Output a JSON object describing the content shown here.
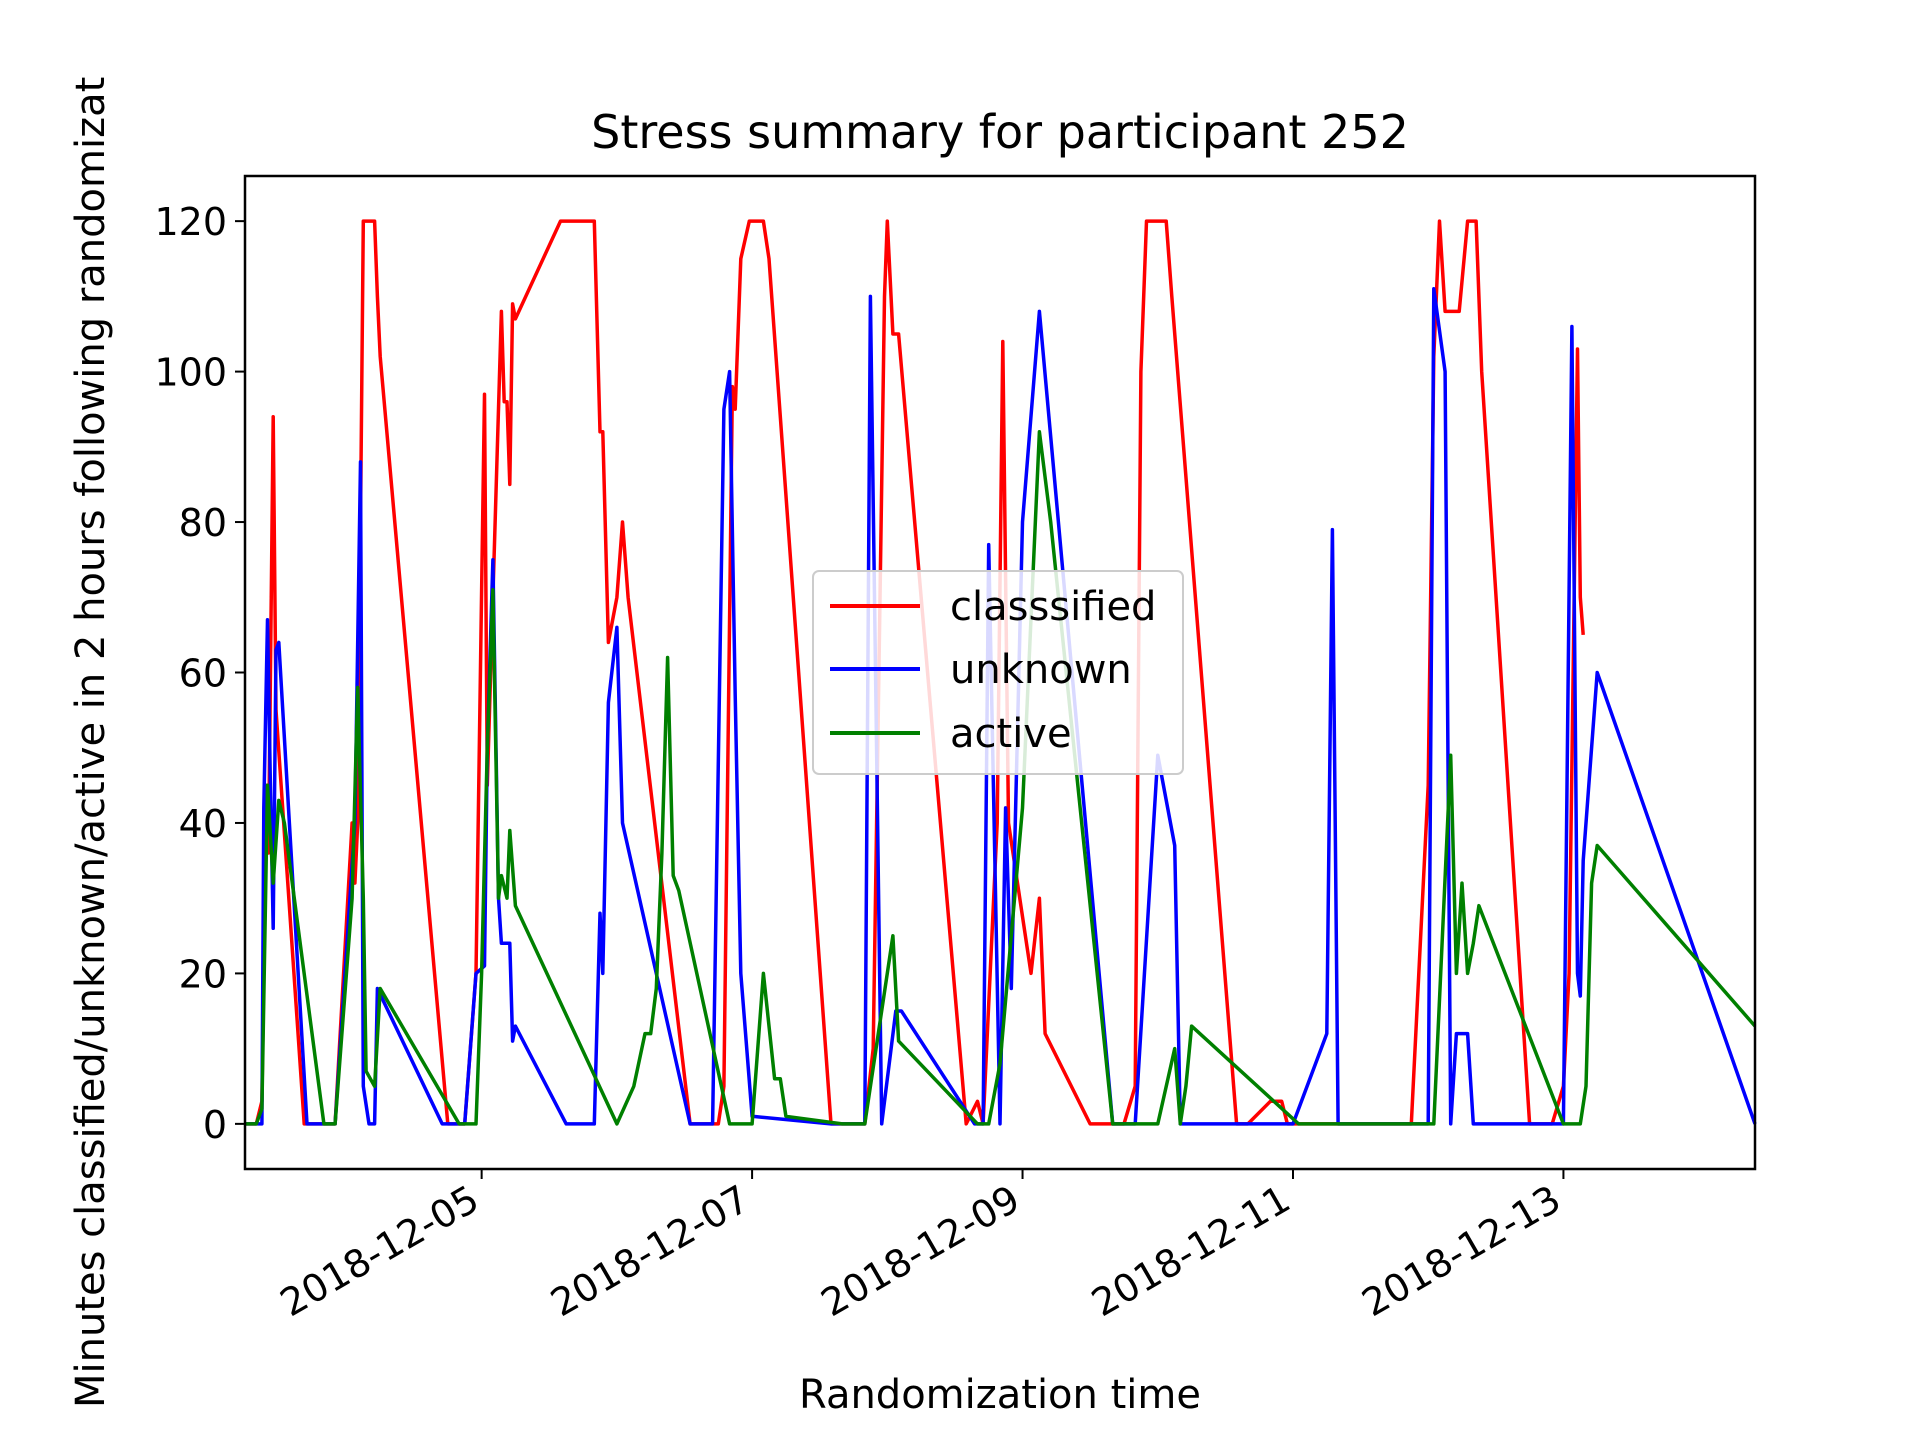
{
  "chart_data": {
    "type": "line",
    "title": "Stress summary for participant 252",
    "xlabel": "Randomization time",
    "ylabel": "Minutes classified/unknown/active in 2 hours following randomizat",
    "xlim": [
      "2018-12-03 06:00",
      "2018-12-14 10:00"
    ],
    "ylim": [
      -6,
      126
    ],
    "xticks": [
      "2018-12-05",
      "2018-12-07",
      "2018-12-09",
      "2018-12-11",
      "2018-12-13"
    ],
    "yticks": [
      0,
      20,
      40,
      60,
      80,
      100,
      120
    ],
    "grid": false,
    "legend_position": "center-right",
    "series": [
      {
        "name": "classsified",
        "color": "#ff0000",
        "points": [
          [
            "2018-12-03 06:00",
            0
          ],
          [
            "2018-12-03 08:00",
            0
          ],
          [
            "2018-12-03 09:00",
            3
          ],
          [
            "2018-12-03 09:50",
            45
          ],
          [
            "2018-12-03 10:10",
            36
          ],
          [
            "2018-12-03 11:00",
            94
          ],
          [
            "2018-12-03 11:30",
            55
          ],
          [
            "2018-12-03 16:30",
            0
          ],
          [
            "2018-12-03 20:00",
            0
          ],
          [
            "2018-12-03 22:00",
            0
          ],
          [
            "2018-12-04 01:00",
            40
          ],
          [
            "2018-12-04 01:30",
            32
          ],
          [
            "2018-12-04 02:00",
            40
          ],
          [
            "2018-12-04 03:00",
            120
          ],
          [
            "2018-12-04 05:00",
            120
          ],
          [
            "2018-12-04 05:30",
            110
          ],
          [
            "2018-12-04 06:00",
            102
          ],
          [
            "2018-12-04 18:00",
            0
          ],
          [
            "2018-12-04 21:00",
            0
          ],
          [
            "2018-12-04 23:00",
            20
          ],
          [
            "2018-12-05 00:30",
            97
          ],
          [
            "2018-12-05 01:00",
            45
          ],
          [
            "2018-12-05 03:30",
            108
          ],
          [
            "2018-12-05 04:00",
            96
          ],
          [
            "2018-12-05 04:30",
            96
          ],
          [
            "2018-12-05 05:00",
            85
          ],
          [
            "2018-12-05 05:30",
            109
          ],
          [
            "2018-12-05 06:00",
            107
          ],
          [
            "2018-12-05 14:00",
            120
          ],
          [
            "2018-12-05 20:00",
            120
          ],
          [
            "2018-12-05 21:00",
            92
          ],
          [
            "2018-12-05 21:30",
            92
          ],
          [
            "2018-12-05 22:30",
            64
          ],
          [
            "2018-12-06 00:00",
            70
          ],
          [
            "2018-12-06 01:00",
            80
          ],
          [
            "2018-12-06 02:00",
            70
          ],
          [
            "2018-12-06 13:00",
            0
          ],
          [
            "2018-12-06 16:00",
            0
          ],
          [
            "2018-12-06 18:00",
            0
          ],
          [
            "2018-12-06 19:00",
            5
          ],
          [
            "2018-12-06 20:30",
            98
          ],
          [
            "2018-12-06 21:00",
            95
          ],
          [
            "2018-12-06 22:00",
            115
          ],
          [
            "2018-12-06 23:30",
            120
          ],
          [
            "2018-12-07 02:00",
            120
          ],
          [
            "2018-12-07 03:00",
            115
          ],
          [
            "2018-12-07 14:00",
            0
          ],
          [
            "2018-12-07 20:00",
            0
          ],
          [
            "2018-12-07 21:30",
            10
          ],
          [
            "2018-12-07 22:30",
            60
          ],
          [
            "2018-12-07 23:30",
            110
          ],
          [
            "2018-12-08 00:00",
            120
          ],
          [
            "2018-12-08 01:00",
            105
          ],
          [
            "2018-12-08 02:00",
            105
          ],
          [
            "2018-12-08 14:00",
            0
          ],
          [
            "2018-12-08 16:00",
            3
          ],
          [
            "2018-12-08 17:00",
            0
          ],
          [
            "2018-12-08 19:30",
            40
          ],
          [
            "2018-12-08 20:30",
            104
          ],
          [
            "2018-12-08 21:30",
            40
          ],
          [
            "2018-12-09 01:30",
            20
          ],
          [
            "2018-12-09 03:00",
            30
          ],
          [
            "2018-12-09 04:00",
            12
          ],
          [
            "2018-12-09 12:00",
            0
          ],
          [
            "2018-12-09 16:00",
            0
          ],
          [
            "2018-12-09 18:00",
            0
          ],
          [
            "2018-12-09 20:00",
            5
          ],
          [
            "2018-12-09 21:00",
            100
          ],
          [
            "2018-12-09 22:00",
            120
          ],
          [
            "2018-12-10 01:30",
            120
          ],
          [
            "2018-12-10 02:30",
            110
          ],
          [
            "2018-12-10 14:00",
            0
          ],
          [
            "2018-12-10 16:00",
            0
          ],
          [
            "2018-12-10 20:00",
            3
          ],
          [
            "2018-12-10 22:00",
            3
          ],
          [
            "2018-12-10 23:00",
            0
          ],
          [
            "2018-12-11 21:00",
            0
          ],
          [
            "2018-12-12 00:00",
            45
          ],
          [
            "2018-12-12 01:00",
            102
          ],
          [
            "2018-12-12 02:00",
            120
          ],
          [
            "2018-12-12 03:00",
            108
          ],
          [
            "2018-12-12 05:30",
            108
          ],
          [
            "2018-12-12 07:00",
            120
          ],
          [
            "2018-12-12 08:30",
            120
          ],
          [
            "2018-12-12 09:30",
            100
          ],
          [
            "2018-12-12 18:00",
            0
          ],
          [
            "2018-12-12 20:00",
            0
          ],
          [
            "2018-12-12 22:00",
            0
          ],
          [
            "2018-12-13 00:00",
            5
          ],
          [
            "2018-12-13 01:00",
            20
          ],
          [
            "2018-12-13 02:30",
            103
          ],
          [
            "2018-12-13 03:00",
            70
          ],
          [
            "2018-12-13 03:30",
            65
          ]
        ]
      },
      {
        "name": "unknown",
        "color": "#0000ff",
        "points": [
          [
            "2018-12-03 06:00",
            0
          ],
          [
            "2018-12-03 09:00",
            0
          ],
          [
            "2018-12-03 09:20",
            42
          ],
          [
            "2018-12-03 10:00",
            67
          ],
          [
            "2018-12-03 10:30",
            45
          ],
          [
            "2018-12-03 11:00",
            26
          ],
          [
            "2018-12-03 11:30",
            63
          ],
          [
            "2018-12-03 12:00",
            64
          ],
          [
            "2018-12-03 17:00",
            0
          ],
          [
            "2018-12-03 20:00",
            0
          ],
          [
            "2018-12-03 22:00",
            0
          ],
          [
            "2018-12-04 01:30",
            40
          ],
          [
            "2018-12-04 02:30",
            88
          ],
          [
            "2018-12-04 03:00",
            5
          ],
          [
            "2018-12-04 04:00",
            0
          ],
          [
            "2018-12-04 05:00",
            0
          ],
          [
            "2018-12-04 05:30",
            18
          ],
          [
            "2018-12-04 17:00",
            0
          ],
          [
            "2018-12-04 21:00",
            0
          ],
          [
            "2018-12-04 23:00",
            20
          ],
          [
            "2018-12-05 00:30",
            21
          ],
          [
            "2018-12-05 01:00",
            50
          ],
          [
            "2018-12-05 02:00",
            75
          ],
          [
            "2018-12-05 03:00",
            30
          ],
          [
            "2018-12-05 03:30",
            24
          ],
          [
            "2018-12-05 05:00",
            24
          ],
          [
            "2018-12-05 05:30",
            11
          ],
          [
            "2018-12-05 06:00",
            13
          ],
          [
            "2018-12-05 15:00",
            0
          ],
          [
            "2018-12-05 20:00",
            0
          ],
          [
            "2018-12-05 21:00",
            28
          ],
          [
            "2018-12-05 21:30",
            20
          ],
          [
            "2018-12-05 22:30",
            56
          ],
          [
            "2018-12-06 00:00",
            66
          ],
          [
            "2018-12-06 01:00",
            40
          ],
          [
            "2018-12-06 13:00",
            0
          ],
          [
            "2018-12-06 15:00",
            0
          ],
          [
            "2018-12-06 17:00",
            0
          ],
          [
            "2018-12-06 19:00",
            95
          ],
          [
            "2018-12-06 20:00",
            100
          ],
          [
            "2018-12-06 21:00",
            57
          ],
          [
            "2018-12-06 22:00",
            20
          ],
          [
            "2018-12-07 00:00",
            1
          ],
          [
            "2018-12-07 14:00",
            0
          ],
          [
            "2018-12-07 20:00",
            0
          ],
          [
            "2018-12-07 21:00",
            110
          ],
          [
            "2018-12-07 23:00",
            0
          ],
          [
            "2018-12-08 01:30",
            15
          ],
          [
            "2018-12-08 02:30",
            15
          ],
          [
            "2018-12-08 15:30",
            0
          ],
          [
            "2018-12-08 17:00",
            0
          ],
          [
            "2018-12-08 18:00",
            77
          ],
          [
            "2018-12-08 20:00",
            0
          ],
          [
            "2018-12-08 21:00",
            42
          ],
          [
            "2018-12-08 22:00",
            18
          ],
          [
            "2018-12-09 00:00",
            80
          ],
          [
            "2018-12-09 03:00",
            108
          ],
          [
            "2018-12-09 16:00",
            0
          ],
          [
            "2018-12-09 20:00",
            0
          ],
          [
            "2018-12-10 00:00",
            49
          ],
          [
            "2018-12-10 03:00",
            37
          ],
          [
            "2018-12-10 04:00",
            0
          ],
          [
            "2018-12-11 00:00",
            0
          ],
          [
            "2018-12-11 06:00",
            12
          ],
          [
            "2018-12-11 07:00",
            79
          ],
          [
            "2018-12-11 08:00",
            0
          ],
          [
            "2018-12-12 00:00",
            0
          ],
          [
            "2018-12-12 01:00",
            111
          ],
          [
            "2018-12-12 03:00",
            100
          ],
          [
            "2018-12-12 04:00",
            0
          ],
          [
            "2018-12-12 05:00",
            12
          ],
          [
            "2018-12-12 07:00",
            12
          ],
          [
            "2018-12-12 08:00",
            0
          ],
          [
            "2018-12-12 19:00",
            0
          ],
          [
            "2018-12-12 20:00",
            0
          ],
          [
            "2018-12-13 00:00",
            0
          ],
          [
            "2018-12-13 01:30",
            106
          ],
          [
            "2018-12-13 02:30",
            20
          ],
          [
            "2018-12-13 03:00",
            17
          ],
          [
            "2018-12-13 03:30",
            35
          ],
          [
            "2018-12-13 06:00",
            60
          ],
          [
            "2018-12-14 10:00",
            0
          ]
        ]
      },
      {
        "name": "active",
        "color": "#008000",
        "points": [
          [
            "2018-12-03 06:00",
            0
          ],
          [
            "2018-12-03 08:00",
            0
          ],
          [
            "2018-12-03 09:00",
            2
          ],
          [
            "2018-12-03 10:00",
            45
          ],
          [
            "2018-12-03 11:00",
            32
          ],
          [
            "2018-12-03 12:00",
            43
          ],
          [
            "2018-12-03 13:00",
            40
          ],
          [
            "2018-12-03 20:00",
            0
          ],
          [
            "2018-12-03 22:00",
            0
          ],
          [
            "2018-12-04 01:00",
            30
          ],
          [
            "2018-12-04 02:00",
            58
          ],
          [
            "2018-12-04 03:00",
            30
          ],
          [
            "2018-12-04 03:30",
            7
          ],
          [
            "2018-12-04 05:00",
            5
          ],
          [
            "2018-12-04 06:00",
            18
          ],
          [
            "2018-12-04 20:00",
            0
          ],
          [
            "2018-12-04 23:00",
            0
          ],
          [
            "2018-12-05 00:00",
            20
          ],
          [
            "2018-12-05 01:00",
            50
          ],
          [
            "2018-12-05 02:00",
            71
          ],
          [
            "2018-12-05 03:00",
            30
          ],
          [
            "2018-12-05 03:30",
            33
          ],
          [
            "2018-12-05 04:30",
            30
          ],
          [
            "2018-12-05 05:00",
            39
          ],
          [
            "2018-12-05 06:00",
            29
          ],
          [
            "2018-12-06 00:00",
            0
          ],
          [
            "2018-12-06 03:00",
            5
          ],
          [
            "2018-12-06 05:00",
            12
          ],
          [
            "2018-12-06 06:00",
            12
          ],
          [
            "2018-12-06 07:00",
            18
          ],
          [
            "2018-12-06 08:00",
            36
          ],
          [
            "2018-12-06 09:00",
            62
          ],
          [
            "2018-12-06 10:00",
            33
          ],
          [
            "2018-12-06 11:00",
            31
          ],
          [
            "2018-12-06 20:00",
            0
          ],
          [
            "2018-12-07 00:00",
            0
          ],
          [
            "2018-12-07 02:00",
            20
          ],
          [
            "2018-12-07 04:00",
            6
          ],
          [
            "2018-12-07 05:00",
            6
          ],
          [
            "2018-12-07 06:00",
            1
          ],
          [
            "2018-12-07 16:00",
            0
          ],
          [
            "2018-12-07 20:00",
            0
          ],
          [
            "2018-12-08 01:00",
            25
          ],
          [
            "2018-12-08 02:00",
            11
          ],
          [
            "2018-12-08 16:00",
            0
          ],
          [
            "2018-12-08 18:00",
            0
          ],
          [
            "2018-12-08 20:00",
            8
          ],
          [
            "2018-12-09 00:00",
            42
          ],
          [
            "2018-12-09 03:00",
            92
          ],
          [
            "2018-12-09 05:00",
            80
          ],
          [
            "2018-12-09 16:00",
            0
          ],
          [
            "2018-12-10 00:00",
            0
          ],
          [
            "2018-12-10 03:00",
            10
          ],
          [
            "2018-12-10 04:00",
            0
          ],
          [
            "2018-12-10 05:00",
            5
          ],
          [
            "2018-12-10 06:00",
            13
          ],
          [
            "2018-12-11 01:00",
            0
          ],
          [
            "2018-12-12 01:00",
            0
          ],
          [
            "2018-12-12 04:00",
            49
          ],
          [
            "2018-12-12 05:00",
            20
          ],
          [
            "2018-12-12 06:00",
            32
          ],
          [
            "2018-12-12 07:00",
            20
          ],
          [
            "2018-12-12 08:00",
            24
          ],
          [
            "2018-12-12 09:00",
            29
          ],
          [
            "2018-12-13 00:00",
            0
          ],
          [
            "2018-12-13 03:00",
            0
          ],
          [
            "2018-12-13 04:00",
            5
          ],
          [
            "2018-12-13 05:00",
            32
          ],
          [
            "2018-12-13 06:00",
            37
          ],
          [
            "2018-12-14 10:00",
            13
          ]
        ]
      }
    ]
  }
}
